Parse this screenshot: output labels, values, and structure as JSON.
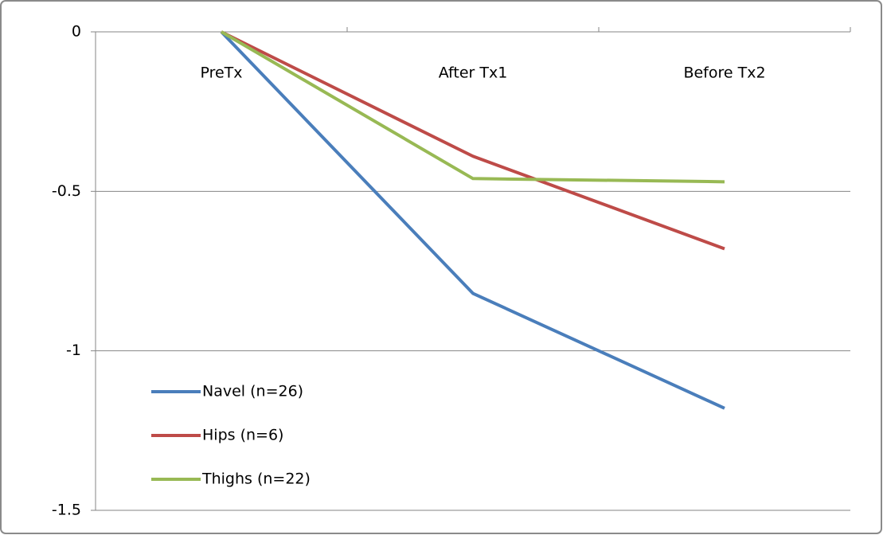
{
  "chart_data": {
    "type": "line",
    "categories": [
      "PreTx",
      "After Tx1",
      "Before Tx2"
    ],
    "series": [
      {
        "name": "Navel (n=26)",
        "color": "#4a7ebb",
        "values": [
          0,
          -0.82,
          -1.18
        ]
      },
      {
        "name": "Hips (n=6)",
        "color": "#be4b48",
        "values": [
          0,
          -0.39,
          -0.68
        ]
      },
      {
        "name": "Thighs (n=22)",
        "color": "#98b954",
        "values": [
          0,
          -0.46,
          -0.47
        ]
      }
    ],
    "ylim": [
      -1.5,
      0
    ],
    "yticks": [
      0,
      -0.5,
      -1,
      -1.5
    ],
    "grid": true,
    "legend": "lower left"
  }
}
